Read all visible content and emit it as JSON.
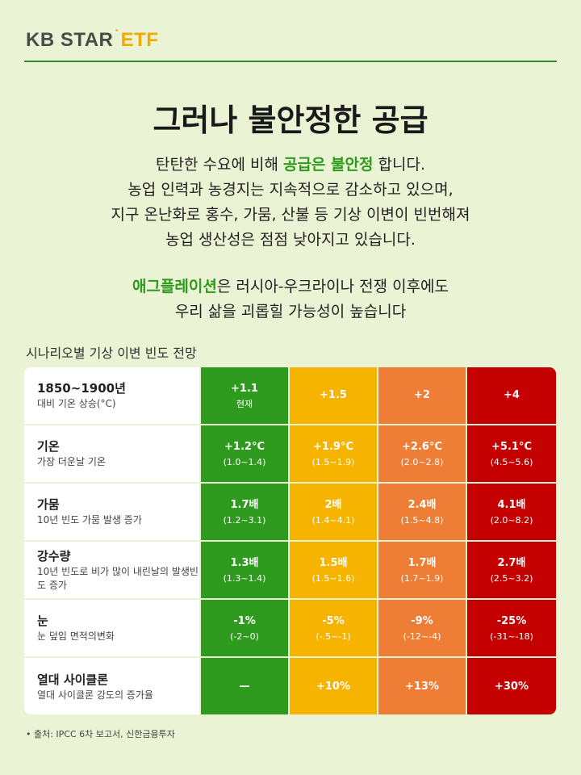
{
  "logo": {
    "kb": "KB STAR",
    "etf": "ETF"
  },
  "title": "그러나 불안정한 공급",
  "paragraph1": {
    "line1_pre": "탄탄한 수요에 비해 ",
    "line1_hl": "공급은 불안정",
    "line1_post": " 합니다.",
    "line2": "농업 인력과 농경지는 지속적으로 감소하고 있으며,",
    "line3": "지구 온난화로 홍수, 가뭄, 산불 등 기상 이변이 빈번해져",
    "line4": "농업 생산성은 점점 낮아지고 있습니다."
  },
  "paragraph2": {
    "line1_hl": "애그플레이션",
    "line1_post": "은 러시아-우크라이나 전쟁 이후에도",
    "line2": "우리 삶을 괴롭힐 가능성이 높습니다"
  },
  "table_title": "시나리오별 기상 이변 빈도 전망",
  "colors": {
    "green": "#2E9A1E",
    "yellow": "#F6B400",
    "orange": "#EE7E35",
    "red": "#C40000",
    "background": "#EAF3D3"
  },
  "rows": [
    {
      "label": "1850~1900년",
      "sub": "대비 기온 상승(°C)",
      "cells": [
        {
          "v": "+1.1",
          "r": "현재"
        },
        {
          "v": "+1.5",
          "r": ""
        },
        {
          "v": "+2",
          "r": ""
        },
        {
          "v": "+4",
          "r": ""
        }
      ]
    },
    {
      "label": "기온",
      "sub": "가장 더운날 기온",
      "cells": [
        {
          "v": "+1.2°C",
          "r": "(1.0~1.4)"
        },
        {
          "v": "+1.9°C",
          "r": "(1.5~1.9)"
        },
        {
          "v": "+2.6°C",
          "r": "(2.0~2.8)"
        },
        {
          "v": "+5.1°C",
          "r": "(4.5~5.6)"
        }
      ]
    },
    {
      "label": "가뭄",
      "sub": "10년 빈도 가뭄 발생 증가",
      "cells": [
        {
          "v": "1.7배",
          "r": "(1.2~3.1)"
        },
        {
          "v": "2배",
          "r": "(1.4~4.1)"
        },
        {
          "v": "2.4배",
          "r": "(1.5~4.8)"
        },
        {
          "v": "4.1배",
          "r": "(2.0~8.2)"
        }
      ]
    },
    {
      "label": "강수량",
      "sub": "10년 빈도로 비가 많이 내린날의 발생빈도 증가",
      "cells": [
        {
          "v": "1.3배",
          "r": "(1.3~1.4)"
        },
        {
          "v": "1.5배",
          "r": "(1.5~1.6)"
        },
        {
          "v": "1.7배",
          "r": "(1.7~1.9)"
        },
        {
          "v": "2.7배",
          "r": "(2.5~3.2)"
        }
      ]
    },
    {
      "label": "눈",
      "sub": "눈 덮임 면적의변화",
      "cells": [
        {
          "v": "-1%",
          "r": "(-2~0)"
        },
        {
          "v": "-5%",
          "r": "(-.5~-1)"
        },
        {
          "v": "-9%",
          "r": "(-12~-4)"
        },
        {
          "v": "-25%",
          "r": "(-31~-18)"
        }
      ]
    },
    {
      "label": "열대 사이클론",
      "sub": "열대 사이클론 강도의 증가율",
      "cells": [
        {
          "v": "—",
          "r": ""
        },
        {
          "v": "+10%",
          "r": ""
        },
        {
          "v": "+13%",
          "r": ""
        },
        {
          "v": "+30%",
          "r": ""
        }
      ]
    }
  ],
  "source": "• 출처: IPCC 6차 보고서, 신한금융투자"
}
